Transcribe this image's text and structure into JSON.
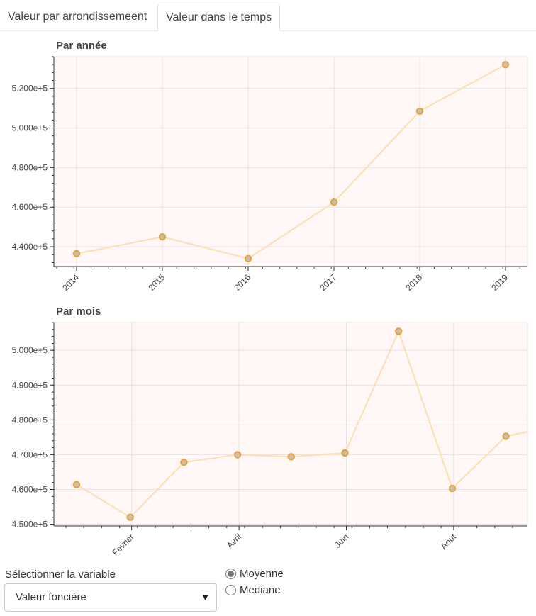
{
  "tabs": [
    {
      "label": "Valeur par arrondissemeent",
      "active": false
    },
    {
      "label": "Valeur dans le temps",
      "active": true
    }
  ],
  "chart_data": [
    {
      "type": "line",
      "title": "Par année",
      "x": [
        "2014",
        "2015",
        "2016",
        "2017",
        "2018",
        "2019"
      ],
      "values": [
        436500,
        445000,
        434000,
        462500,
        508500,
        532000
      ],
      "yticks": [
        440000,
        460000,
        480000,
        500000,
        520000
      ],
      "ytick_labels": [
        "4.400e+5",
        "4.600e+5",
        "4.800e+5",
        "5.000e+5",
        "5.200e+5"
      ],
      "ylim": [
        430000,
        536000
      ],
      "grid": true,
      "line_color": "#fddfb8",
      "marker_edge": "#f0a030",
      "marker_fill": "#c0c0bc",
      "background": "#fff8f6"
    },
    {
      "type": "line",
      "title": "Par mois",
      "x": [
        1,
        2,
        3,
        4,
        5,
        6,
        7,
        8,
        9
      ],
      "values": [
        461400,
        452000,
        467800,
        470000,
        469400,
        470500,
        505500,
        460300,
        475300
      ],
      "tail_value": 476600,
      "xticks": [
        2,
        4,
        6,
        8
      ],
      "xtick_labels": [
        "Fevrier",
        "Avril",
        "Juin",
        "Aout"
      ],
      "yticks": [
        450000,
        460000,
        470000,
        480000,
        490000,
        500000
      ],
      "ytick_labels": [
        "4.500e+5",
        "4.600e+5",
        "4.700e+5",
        "4.800e+5",
        "4.900e+5",
        "5.000e+5"
      ],
      "ylim": [
        449500,
        508000
      ],
      "grid": true,
      "line_color": "#fddfb8",
      "marker_edge": "#f0a030",
      "marker_fill": "#c0c0bc",
      "background": "#fff8f6"
    }
  ],
  "controls": {
    "variable_label": "Sélectionner la variable",
    "variable_value": "Valeur foncière",
    "radio_options": [
      {
        "label": "Moyenne",
        "checked": true
      },
      {
        "label": "Mediane",
        "checked": false
      }
    ]
  }
}
